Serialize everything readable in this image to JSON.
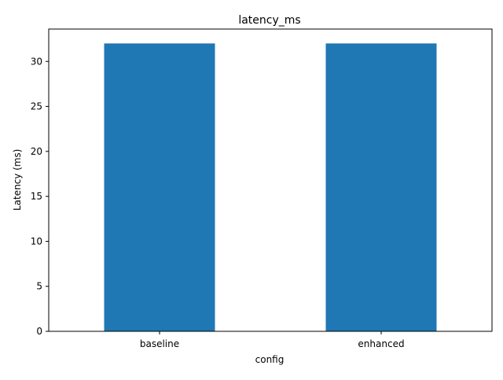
{
  "chart_data": {
    "type": "bar",
    "title": "latency_ms",
    "xlabel": "config",
    "ylabel": "Latency (ms)",
    "categories": [
      "baseline",
      "enhanced"
    ],
    "values": [
      32,
      32
    ],
    "ylim": [
      0,
      33.6
    ],
    "yticks": [
      0,
      5,
      10,
      15,
      20,
      25,
      30
    ],
    "ytick_labels": [
      "0",
      "5",
      "10",
      "15",
      "20",
      "25",
      "30"
    ],
    "grid": false,
    "legend": "none",
    "bar_color": "#1f77b4"
  }
}
